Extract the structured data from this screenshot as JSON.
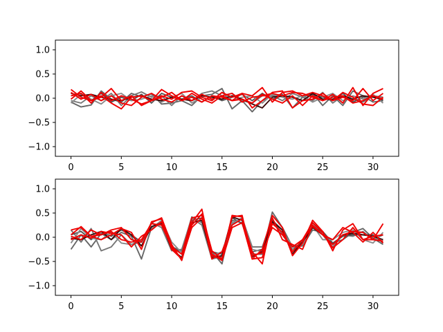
{
  "chart_data": [
    {
      "type": "line",
      "title": "",
      "xlabel": "",
      "ylabel": "",
      "xlim": [
        -1.55,
        32.55
      ],
      "ylim": [
        -1.2,
        1.2
      ],
      "xticks": [
        0,
        5,
        10,
        15,
        20,
        25,
        30
      ],
      "xtick_labels": [
        "0",
        "5",
        "10",
        "15",
        "20",
        "25",
        "30"
      ],
      "yticks": [
        -1.0,
        -0.5,
        0.0,
        0.5,
        1.0
      ],
      "ytick_labels": [
        "−1.0",
        "−0.5",
        "0.0",
        "0.5",
        "1.0"
      ],
      "grid": false,
      "x": [
        0,
        1,
        2,
        3,
        4,
        5,
        6,
        7,
        8,
        9,
        10,
        11,
        12,
        13,
        14,
        15,
        16,
        17,
        18,
        19,
        20,
        21,
        22,
        23,
        24,
        25,
        26,
        27,
        28,
        29,
        30,
        31
      ],
      "series": [
        {
          "color": "#666666",
          "values": [
            -0.08,
            -0.18,
            -0.14,
            0.15,
            -0.02,
            -0.08,
            0.1,
            0.03,
            0.09,
            -0.12,
            -0.1,
            -0.05,
            -0.15,
            0.05,
            0.08,
            0.2,
            -0.22,
            -0.05,
            -0.28,
            -0.05,
            0.05,
            0.08,
            -0.2,
            0.02,
            0.1,
            -0.15,
            0.05,
            -0.15,
            0.15,
            0.05,
            -0.08,
            -0.05
          ]
        },
        {
          "color": "#777777",
          "values": [
            -0.05,
            -0.1,
            0.05,
            -0.05,
            0.1,
            -0.15,
            0.05,
            0.13,
            0.02,
            0.05,
            -0.15,
            0.05,
            -0.05,
            0.1,
            0.15,
            0.05,
            0.1,
            -0.05,
            -0.1,
            0.05,
            0.05,
            -0.05,
            0.1,
            0.02,
            -0.05,
            0.12,
            -0.1,
            0.05,
            -0.02,
            -0.08,
            0.05,
            0.02
          ]
        },
        {
          "color": "#555555",
          "values": [
            0.05,
            0.1,
            -0.05,
            0.1,
            -0.08,
            0.02,
            -0.05,
            0.08,
            -0.1,
            0.1,
            0.02,
            -0.02,
            0.05,
            -0.08,
            0.05,
            -0.05,
            0.02,
            0.08,
            -0.05,
            0.1,
            -0.02,
            0.05,
            0.03,
            -0.05,
            0.08,
            0.02,
            -0.05,
            0.1,
            -0.08,
            0.02,
            0.05,
            -0.05
          ]
        },
        {
          "color": "#8a8a8a",
          "values": [
            -0.1,
            0.08,
            -0.02,
            -0.12,
            0.05,
            0.1,
            -0.05,
            -0.02,
            0.05,
            -0.08,
            0.02,
            0.1,
            -0.1,
            0.02,
            -0.05,
            0.12,
            -0.05,
            0.02,
            0.05,
            -0.1,
            0.08,
            0.02,
            -0.02,
            0.05,
            -0.08,
            0.02,
            0.1,
            -0.05,
            0.05,
            -0.02,
            0.08,
            -0.1
          ]
        },
        {
          "color": "#3a0a0a",
          "values": [
            0.1,
            0.05,
            0.08,
            0.02,
            -0.02,
            -0.05,
            0.02,
            0.05,
            -0.02,
            -0.05,
            0.02,
            -0.02,
            -0.05,
            0.05,
            0.02,
            -0.02,
            0.05,
            -0.02,
            -0.12,
            -0.2,
            0.02,
            0.05,
            0.02,
            -0.05,
            0.1,
            -0.02,
            -0.02,
            0.05,
            -0.02,
            0.05,
            0.02,
            -0.02
          ]
        },
        {
          "color": "#ee0000",
          "values": [
            0.18,
            0.02,
            -0.05,
            0.05,
            -0.1,
            -0.22,
            0.02,
            0.05,
            -0.05,
            0.05,
            -0.02,
            0.12,
            0.15,
            0.02,
            -0.05,
            0.12,
            0.02,
            0.1,
            0.05,
            0.22,
            -0.08,
            0.12,
            0.15,
            0.05,
            0.12,
            0.05,
            -0.05,
            0.02,
            -0.05,
            0.2,
            -0.05,
            0.1
          ]
        },
        {
          "color": "#ee0000",
          "values": [
            -0.02,
            0.15,
            -0.05,
            0.02,
            0.2,
            -0.05,
            0.05,
            -0.15,
            -0.05,
            0.18,
            0.05,
            -0.05,
            0.02,
            -0.08,
            0.05,
            0.02,
            -0.05,
            0.1,
            -0.2,
            -0.05,
            0.12,
            0.15,
            -0.2,
            -0.05,
            -0.02,
            0.1,
            -0.05,
            0.12,
            0.02,
            -0.12,
            -0.15,
            0.02
          ]
        },
        {
          "color": "#ee0000",
          "values": [
            0.12,
            -0.02,
            0.08,
            -0.05,
            0.05,
            -0.1,
            -0.15,
            0.02,
            0.1,
            -0.02,
            -0.08,
            0.05,
            -0.05,
            0.08,
            -0.02,
            0.05,
            0.1,
            -0.08,
            0.02,
            0.05,
            0.1,
            0.05,
            0.12,
            0.1,
            0.02,
            -0.05,
            0.08,
            -0.1,
            0.22,
            -0.15,
            0.1,
            0.2
          ]
        },
        {
          "color": "#ee0000",
          "values": [
            0.05,
            0.1,
            -0.1,
            0.12,
            -0.05,
            0.05,
            -0.02,
            -0.12,
            -0.05,
            0.02,
            0.12,
            -0.05,
            0.1,
            -0.02,
            -0.1,
            0.05,
            -0.05,
            -0.02,
            -0.1,
            0.08,
            -0.02,
            -0.1,
            0.05,
            -0.15,
            0.05,
            -0.05,
            0.02,
            0.05,
            -0.1,
            -0.05,
            0.05,
            -0.02
          ]
        }
      ]
    },
    {
      "type": "line",
      "title": "",
      "xlabel": "",
      "ylabel": "",
      "xlim": [
        -1.55,
        32.55
      ],
      "ylim": [
        -1.2,
        1.2
      ],
      "xticks": [
        0,
        5,
        10,
        15,
        20,
        25,
        30
      ],
      "xtick_labels": [
        "0",
        "5",
        "10",
        "15",
        "20",
        "25",
        "30"
      ],
      "yticks": [
        -1.0,
        -0.5,
        0.0,
        0.5,
        1.0
      ],
      "ytick_labels": [
        "−1.0",
        "−0.5",
        "0.0",
        "0.5",
        "1.0"
      ],
      "grid": false,
      "x": [
        0,
        1,
        2,
        3,
        4,
        5,
        6,
        7,
        8,
        9,
        10,
        11,
        12,
        13,
        14,
        15,
        16,
        17,
        18,
        19,
        20,
        21,
        22,
        23,
        24,
        25,
        26,
        27,
        28,
        29,
        30,
        31
      ],
      "series": [
        {
          "color": "#666666",
          "values": [
            -0.25,
            0.05,
            -0.2,
            0.08,
            -0.05,
            0.1,
            0.02,
            -0.45,
            0.2,
            0.32,
            -0.2,
            -0.28,
            0.42,
            0.3,
            -0.3,
            -0.55,
            0.35,
            0.3,
            -0.35,
            -0.35,
            0.52,
            0.2,
            -0.2,
            -0.18,
            0.15,
            0.1,
            -0.12,
            -0.05,
            0.1,
            0.18,
            -0.02,
            -0.15
          ]
        },
        {
          "color": "#777777",
          "values": [
            0.15,
            -0.1,
            0.18,
            -0.28,
            -0.2,
            0.05,
            -0.15,
            -0.1,
            0.3,
            0.2,
            -0.28,
            -0.25,
            0.4,
            0.25,
            -0.45,
            -0.4,
            0.28,
            0.4,
            -0.2,
            -0.2,
            0.38,
            0.05,
            -0.25,
            -0.1,
            0.3,
            0.05,
            -0.2,
            0.05,
            0.02,
            0.12,
            -0.05,
            0.05
          ]
        },
        {
          "color": "#555555",
          "values": [
            0.05,
            0.12,
            -0.05,
            0.12,
            0.02,
            0.15,
            0.05,
            -0.1,
            0.22,
            0.28,
            -0.22,
            -0.3,
            0.35,
            0.4,
            -0.3,
            -0.35,
            0.4,
            0.28,
            -0.3,
            -0.25,
            0.35,
            0.15,
            -0.3,
            -0.12,
            0.2,
            0.12,
            -0.12,
            0.02,
            0.05,
            0.05,
            0.05,
            -0.12
          ]
        },
        {
          "color": "#8a8a8a",
          "values": [
            -0.12,
            0.18,
            -0.02,
            -0.05,
            0.1,
            -0.12,
            -0.15,
            -0.05,
            0.18,
            0.35,
            -0.1,
            -0.32,
            0.38,
            0.32,
            -0.38,
            -0.3,
            0.3,
            0.38,
            -0.25,
            -0.3,
            0.3,
            0.1,
            -0.18,
            -0.15,
            0.25,
            -0.05,
            -0.05,
            0.1,
            0.15,
            -0.05,
            -0.12,
            0.1
          ]
        },
        {
          "color": "#3a0a0a",
          "values": [
            -0.02,
            -0.05,
            0.05,
            0.12,
            -0.05,
            0.18,
            0.05,
            -0.18,
            0.22,
            0.3,
            -0.25,
            -0.42,
            0.3,
            0.35,
            -0.42,
            -0.38,
            0.42,
            0.35,
            -0.4,
            -0.3,
            0.32,
            0.15,
            -0.35,
            -0.1,
            0.2,
            0.05,
            -0.15,
            0.05,
            0.08,
            0.05,
            0.02,
            -0.05
          ]
        },
        {
          "color": "#ee0000",
          "values": [
            0.15,
            0.2,
            0.02,
            -0.05,
            0.05,
            0.18,
            0.1,
            -0.25,
            0.32,
            0.38,
            -0.25,
            -0.45,
            0.3,
            0.58,
            -0.38,
            -0.45,
            0.42,
            0.45,
            -0.45,
            -0.25,
            0.45,
            0.2,
            -0.38,
            -0.12,
            0.35,
            0.12,
            -0.28,
            0.15,
            0.28,
            -0.05,
            -0.05,
            0.28
          ]
        },
        {
          "color": "#ee0000",
          "values": [
            0.02,
            -0.05,
            0.15,
            0.05,
            0.12,
            -0.05,
            -0.1,
            -0.05,
            0.28,
            0.25,
            -0.2,
            -0.35,
            0.4,
            0.45,
            -0.45,
            -0.3,
            0.25,
            0.38,
            -0.3,
            -0.55,
            0.4,
            -0.05,
            -0.15,
            -0.25,
            0.25,
            0.05,
            -0.05,
            0.2,
            0.1,
            -0.1,
            0.1,
            -0.12
          ]
        },
        {
          "color": "#ee0000",
          "values": [
            0.05,
            0.22,
            0.02,
            0.05,
            0.15,
            0.2,
            -0.05,
            -0.1,
            0.3,
            0.4,
            -0.15,
            -0.48,
            0.25,
            0.48,
            -0.28,
            -0.45,
            0.45,
            0.42,
            -0.38,
            -0.32,
            0.2,
            0.05,
            -0.2,
            -0.05,
            0.3,
            0.1,
            -0.22,
            -0.05,
            0.2,
            -0.05,
            0.02,
            0.05
          ]
        },
        {
          "color": "#ee0000",
          "values": [
            -0.05,
            0.05,
            -0.02,
            0.12,
            0.08,
            0.05,
            -0.2,
            0.02,
            0.15,
            0.32,
            -0.22,
            -0.45,
            0.2,
            0.4,
            -0.35,
            -0.48,
            0.2,
            0.3,
            -0.45,
            -0.42,
            0.28,
            0.1,
            -0.3,
            -0.05,
            0.22,
            0.05,
            -0.15,
            0.05,
            0.12,
            0.1,
            -0.05,
            -0.08
          ]
        }
      ]
    }
  ]
}
